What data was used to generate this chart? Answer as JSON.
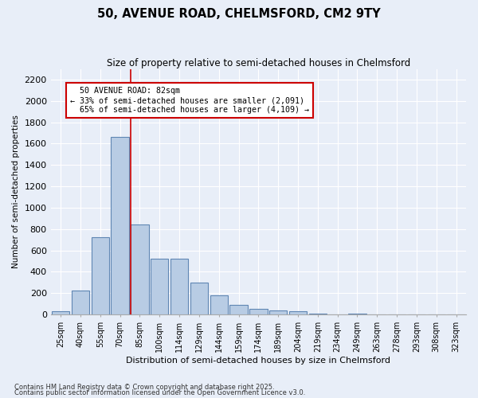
{
  "title": "50, AVENUE ROAD, CHELMSFORD, CM2 9TY",
  "subtitle": "Size of property relative to semi-detached houses in Chelmsford",
  "xlabel": "Distribution of semi-detached houses by size in Chelmsford",
  "ylabel": "Number of semi-detached properties",
  "bar_color": "#b8cce4",
  "bar_edge_color": "#5f86b3",
  "background_color": "#e8eef8",
  "grid_color": "#ffffff",
  "bins": [
    "25sqm",
    "40sqm",
    "55sqm",
    "70sqm",
    "85sqm",
    "100sqm",
    "114sqm",
    "129sqm",
    "144sqm",
    "159sqm",
    "174sqm",
    "189sqm",
    "204sqm",
    "219sqm",
    "234sqm",
    "249sqm",
    "263sqm",
    "278sqm",
    "293sqm",
    "308sqm",
    "323sqm"
  ],
  "values": [
    30,
    220,
    720,
    1660,
    840,
    520,
    520,
    300,
    180,
    90,
    50,
    40,
    30,
    10,
    0,
    5,
    0,
    0,
    0,
    0,
    0
  ],
  "property_size": 82,
  "property_label": "50 AVENUE ROAD: 82sqm",
  "pct_smaller": 33,
  "count_smaller": 2091,
  "pct_larger": 65,
  "count_larger": 4109,
  "red_line_color": "#cc0000",
  "annotation_box_color": "#cc0000",
  "ylim": [
    0,
    2300
  ],
  "yticks": [
    0,
    200,
    400,
    600,
    800,
    1000,
    1200,
    1400,
    1600,
    1800,
    2000,
    2200
  ],
  "footnote1": "Contains HM Land Registry data © Crown copyright and database right 2025.",
  "footnote2": "Contains public sector information licensed under the Open Government Licence v3.0.",
  "fig_width": 6.0,
  "fig_height": 5.0,
  "dpi": 100
}
